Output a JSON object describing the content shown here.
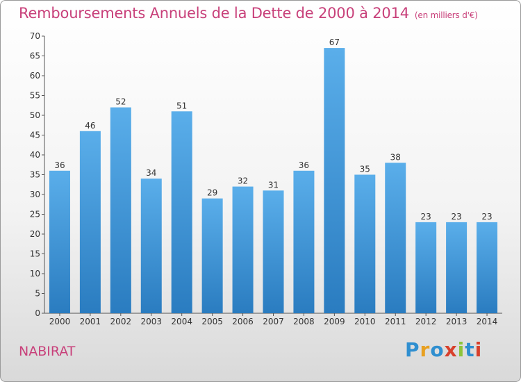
{
  "title": "Remboursements Annuels de la Dette de 2000 à 2014",
  "subtitle": "(en milliers d'€)",
  "place": "NABIRAT",
  "logo": {
    "letters": [
      "P",
      "r",
      "o",
      "x",
      "i",
      "t",
      "i"
    ],
    "colors": [
      "#2f8fd0",
      "#e8a020",
      "#2f8fd0",
      "#d8402c",
      "#8dc43a",
      "#2f8fd0",
      "#d8402c"
    ]
  },
  "colors": {
    "bar_top": "#5aaeea",
    "bar_bottom": "#2a7cc0",
    "title": "#c8407a"
  },
  "chart_data": {
    "type": "bar",
    "categories": [
      "2000",
      "2001",
      "2002",
      "2003",
      "2004",
      "2005",
      "2006",
      "2007",
      "2008",
      "2009",
      "2010",
      "2011",
      "2012",
      "2013",
      "2014"
    ],
    "values": [
      36,
      46,
      52,
      34,
      51,
      29,
      32,
      31,
      36,
      67,
      35,
      38,
      23,
      23,
      23
    ],
    "ylim": [
      0,
      70
    ],
    "yticks": [
      0,
      5,
      10,
      15,
      20,
      25,
      30,
      35,
      40,
      45,
      50,
      55,
      60,
      65,
      70
    ],
    "grid": false,
    "legend": "none"
  }
}
